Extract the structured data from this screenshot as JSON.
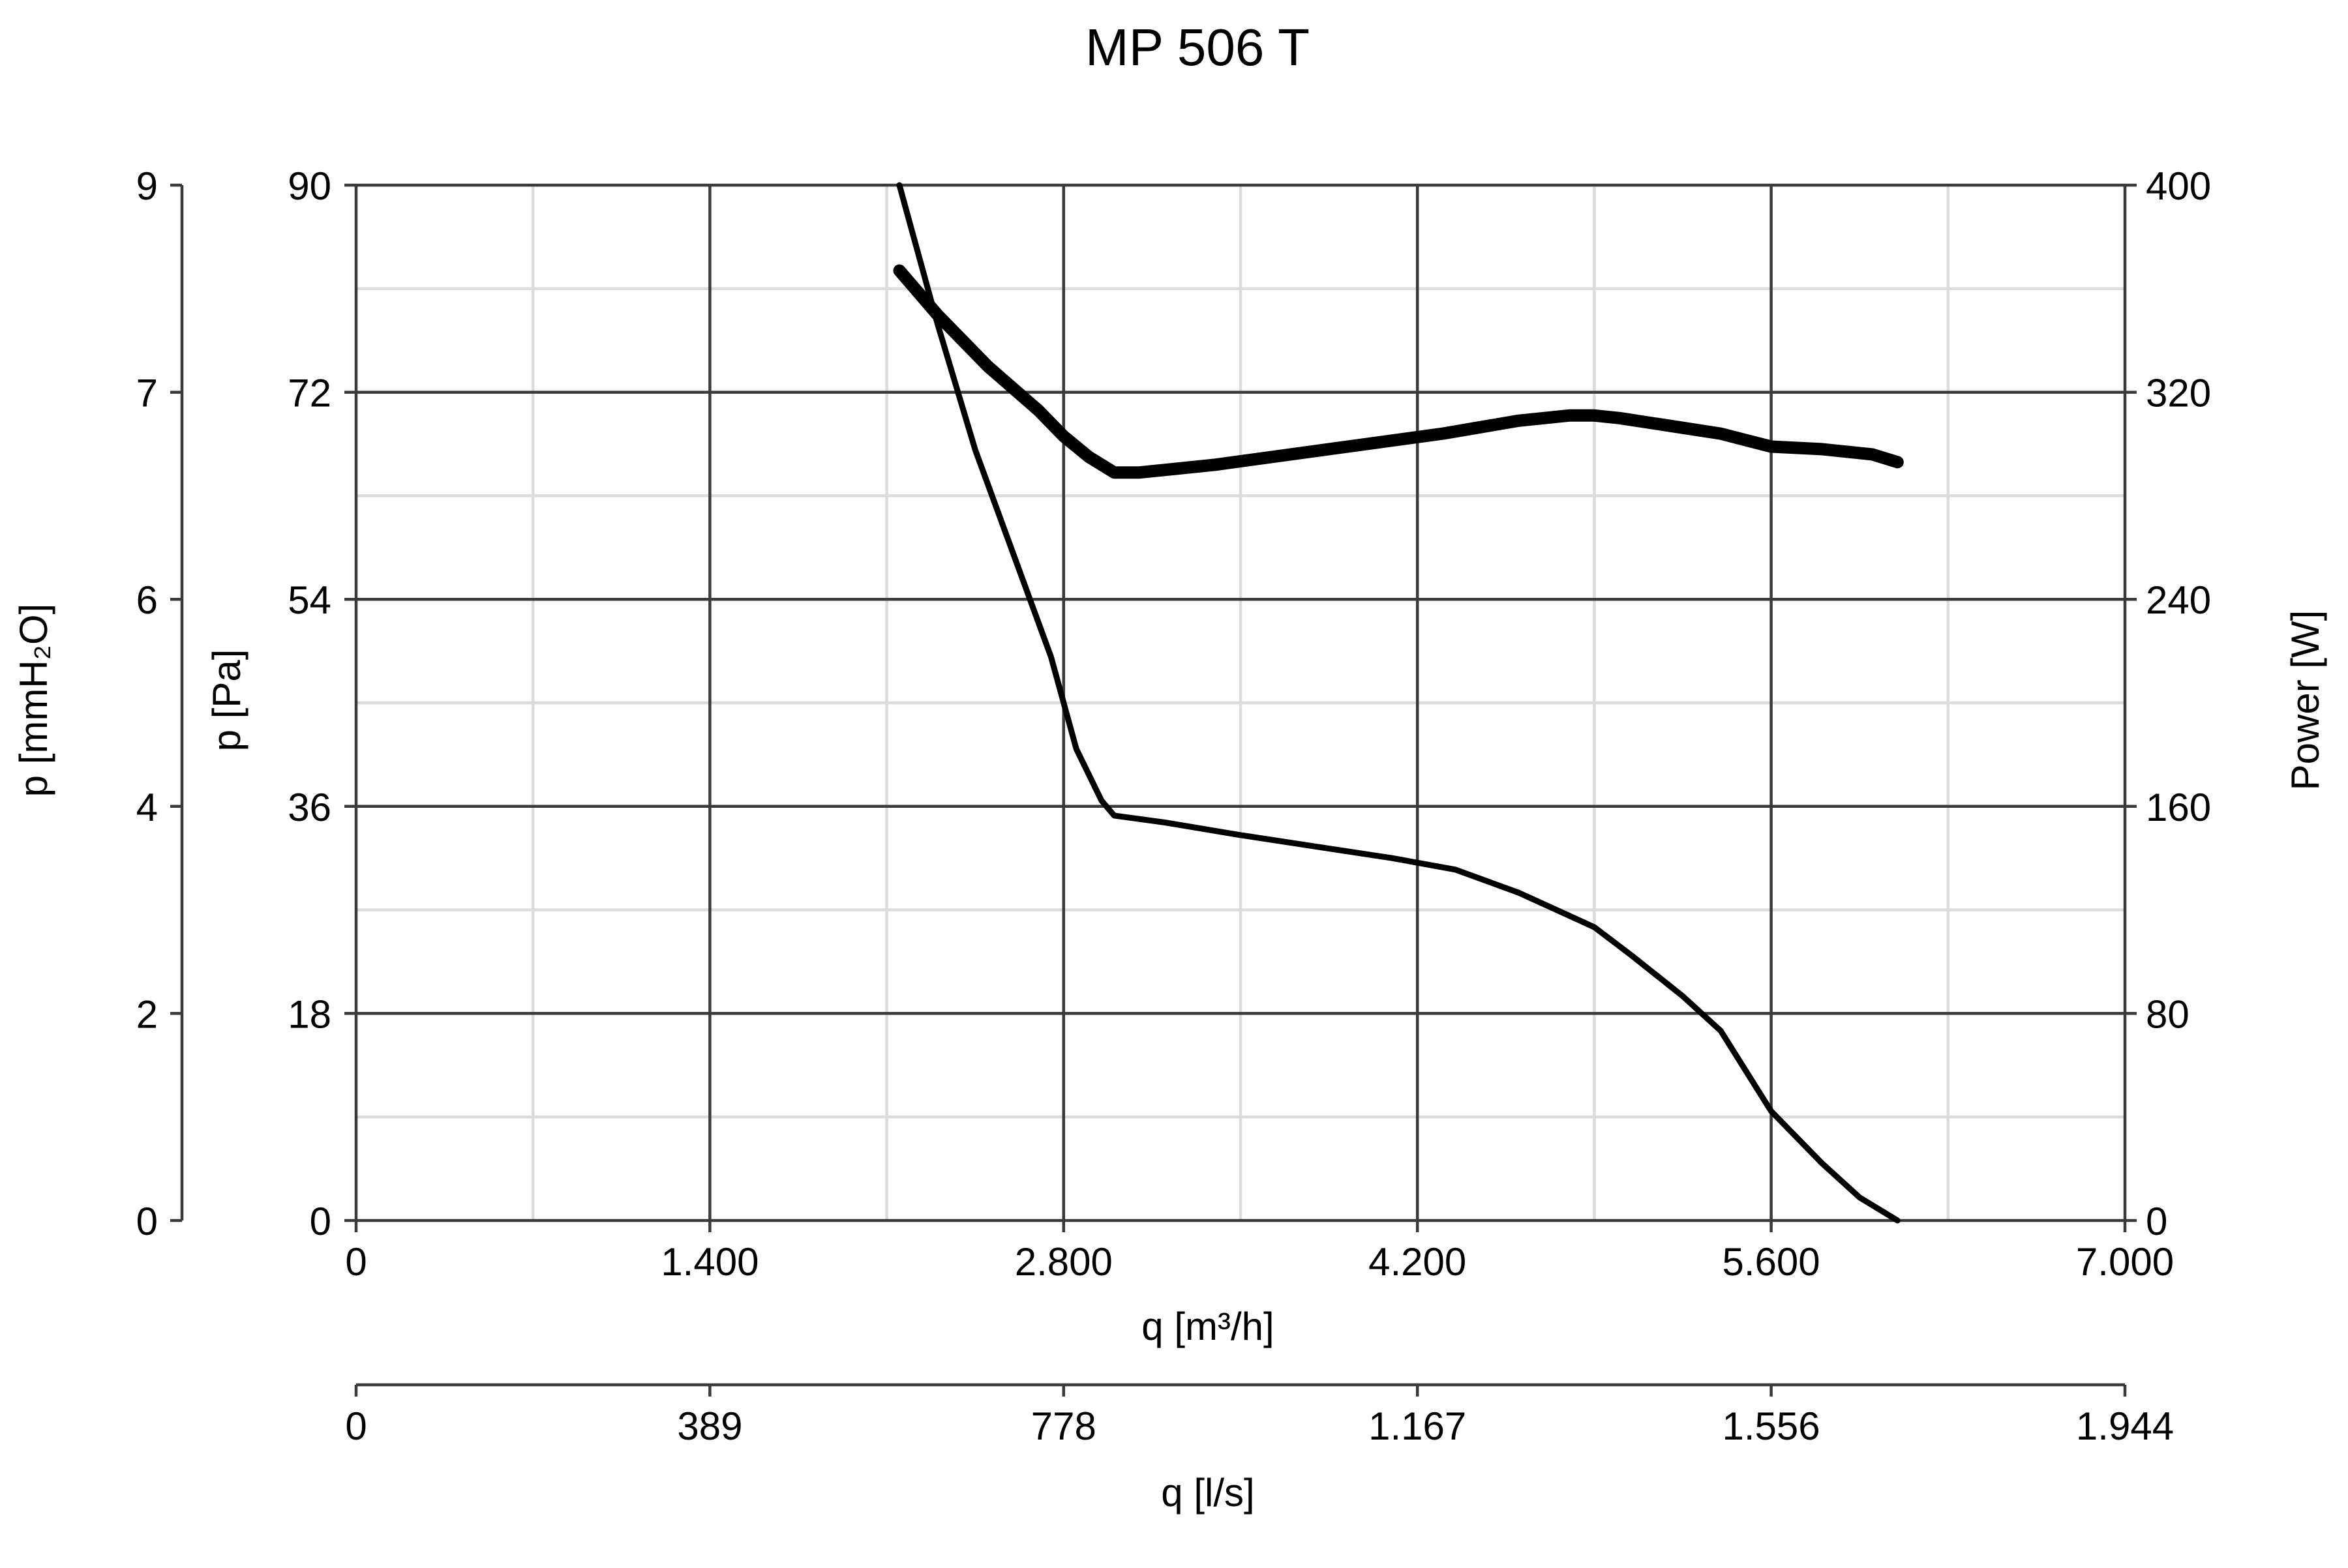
{
  "chart_data": {
    "type": "line",
    "title": "MP 506 T",
    "x_axis": {
      "label": "q [m³/h]",
      "range": [
        0,
        7000
      ],
      "ticks": [
        0,
        1400,
        2800,
        4200,
        5600,
        7000
      ],
      "tick_labels": [
        "0",
        "1.400",
        "2.800",
        "4.200",
        "5.600",
        "7.000"
      ]
    },
    "x2_axis": {
      "label": "q [l/s]",
      "tick_labels": [
        "0",
        "389",
        "778",
        "1.167",
        "1.556",
        "1.944"
      ]
    },
    "y_axis": {
      "label": "p [Pa]",
      "range": [
        0,
        90
      ],
      "ticks": [
        0,
        18,
        36,
        54,
        72,
        90
      ],
      "tick_labels": [
        "0",
        "18",
        "36",
        "54",
        "72",
        "90"
      ]
    },
    "y2_axis": {
      "label": "p [mmH₂O]",
      "tick_labels": [
        "0",
        "2",
        "4",
        "6",
        "7",
        "9"
      ]
    },
    "y3_axis": {
      "label": "Power [W]",
      "range": [
        0,
        400
      ],
      "ticks": [
        0,
        80,
        160,
        240,
        320,
        400
      ],
      "tick_labels": [
        "0",
        "80",
        "160",
        "240",
        "320",
        "400"
      ]
    },
    "grid": true,
    "series": [
      {
        "axis": "pressure",
        "x": [
          2150,
          2300,
          2450,
          2600,
          2750,
          2850,
          2950,
          3000,
          3200,
          3500,
          3800,
          4100,
          4350,
          4600,
          4800,
          4900,
          5050,
          5250,
          5400,
          5600,
          5800,
          5950,
          6100
        ],
        "y": [
          90,
          78,
          67,
          58,
          49,
          41,
          36.5,
          35.2,
          34.6,
          33.5,
          32.5,
          31.5,
          30.5,
          28.5,
          26.5,
          25.5,
          23,
          19.5,
          16.5,
          9.5,
          5,
          2,
          0
        ]
      },
      {
        "axis": "power",
        "x": [
          2150,
          2300,
          2500,
          2700,
          2800,
          2900,
          3000,
          3100,
          3400,
          3700,
          4000,
          4300,
          4600,
          4800,
          4900,
          5000,
          5200,
          5400,
          5600,
          5800,
          6000,
          6100
        ],
        "y": [
          367,
          350,
          330,
          313,
          303,
          295,
          289,
          289,
          292,
          296,
          300,
          304,
          309,
          311,
          311,
          310,
          307,
          304,
          299,
          298,
          296,
          293
        ]
      }
    ]
  }
}
